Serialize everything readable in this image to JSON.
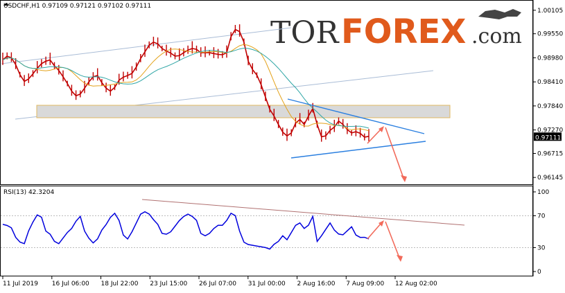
{
  "header": {
    "symbol_line": "USDCHF,H1  0.97109 0.97121 0.97102 0.97111",
    "rsi_label": "RSI(13) 42.3204"
  },
  "logo": {
    "part1": "TOR",
    "part2": "FOREX",
    "part3": ".com"
  },
  "colors": {
    "candle": "#c00000",
    "ma_fast": "#e3a21a",
    "ma_slow": "#2fa6a6",
    "channel": "#a9bcd6",
    "triangle": "#2a7fe0",
    "zone_fill": "#d9d9d9",
    "zone_border": "#e0b860",
    "arrow": "#f26b5b",
    "rsi_line": "#0000dd",
    "rsi_trend": "#b07070",
    "price_label_bg": "#000000"
  },
  "chart_data": [
    {
      "type": "line",
      "title": "USDCHF,H1",
      "y_ticks": [
        "1.00105",
        "0.99550",
        "0.98980",
        "0.98410",
        "0.97840",
        "0.97270",
        "0.96715",
        "0.96145"
      ],
      "y_tick_values": [
        1.00105,
        0.9955,
        0.9898,
        0.9841,
        0.9784,
        0.9727,
        0.96715,
        0.96145
      ],
      "ylim": [
        0.9605,
        1.0025
      ],
      "x_ticks": [
        "11 Jul 2019",
        "16 Jul 06:00",
        "18 Jul 22:00",
        "23 Jul 15:00",
        "26 Jul 07:00",
        "31 Jul 00:00",
        "2 Aug 16:00",
        "7 Aug 09:00",
        "12 Aug 02:00"
      ],
      "current_price": "0.97111",
      "series": [
        {
          "values": [
            0.9893,
            0.9902,
            0.9898,
            0.9882,
            0.9858,
            0.9842,
            0.9848,
            0.986,
            0.9873,
            0.9884,
            0.989,
            0.9893,
            0.9879,
            0.9868,
            0.9853,
            0.9837,
            0.9819,
            0.9808,
            0.9812,
            0.9826,
            0.9841,
            0.9853,
            0.9856,
            0.9839,
            0.9826,
            0.9819,
            0.9828,
            0.9845,
            0.9852,
            0.9856,
            0.9861,
            0.9876,
            0.9896,
            0.9912,
            0.9928,
            0.9935,
            0.9931,
            0.992,
            0.9914,
            0.9909,
            0.9902,
            0.9903,
            0.991,
            0.9916,
            0.992,
            0.9918,
            0.991,
            0.991,
            0.991,
            0.9908,
            0.9906,
            0.9905,
            0.991,
            0.9948,
            0.9965,
            0.996,
            0.9935,
            0.989,
            0.987,
            0.9857,
            0.9834,
            0.9805,
            0.9776,
            0.976,
            0.974,
            0.9722,
            0.9713,
            0.972,
            0.9743,
            0.9752,
            0.974,
            0.976,
            0.9778,
            0.974,
            0.9711,
            0.9713,
            0.9726,
            0.9734,
            0.9748,
            0.974,
            0.9728,
            0.972,
            0.9723,
            0.9719,
            0.971,
            0.9712
          ]
        }
      ]
    },
    {
      "type": "line",
      "title": "RSI(13) 42.3204",
      "y_ticks": [
        "100",
        "70",
        "30",
        "0"
      ],
      "y_tick_values": [
        100,
        70,
        30,
        0
      ],
      "ylim": [
        0,
        100
      ],
      "series": [
        {
          "values": [
            55,
            62,
            58,
            45,
            38,
            35,
            50,
            60,
            68,
            64,
            55,
            50,
            40,
            36,
            42,
            48,
            52,
            60,
            65,
            55,
            45,
            38,
            42,
            52,
            58,
            66,
            70,
            60,
            50,
            44,
            52,
            62,
            72,
            74,
            70,
            62,
            55,
            52,
            50,
            52,
            58,
            64,
            68,
            70,
            66,
            60,
            52,
            48,
            50,
            55,
            58,
            57,
            62,
            70,
            66,
            55,
            40,
            36,
            34,
            32,
            30,
            28,
            25,
            30,
            42,
            48,
            42,
            50,
            58,
            60,
            52,
            55,
            65,
            42,
            48,
            55,
            62,
            52,
            46,
            44,
            48,
            52,
            50,
            46,
            45,
            42
          ]
        }
      ]
    }
  ]
}
